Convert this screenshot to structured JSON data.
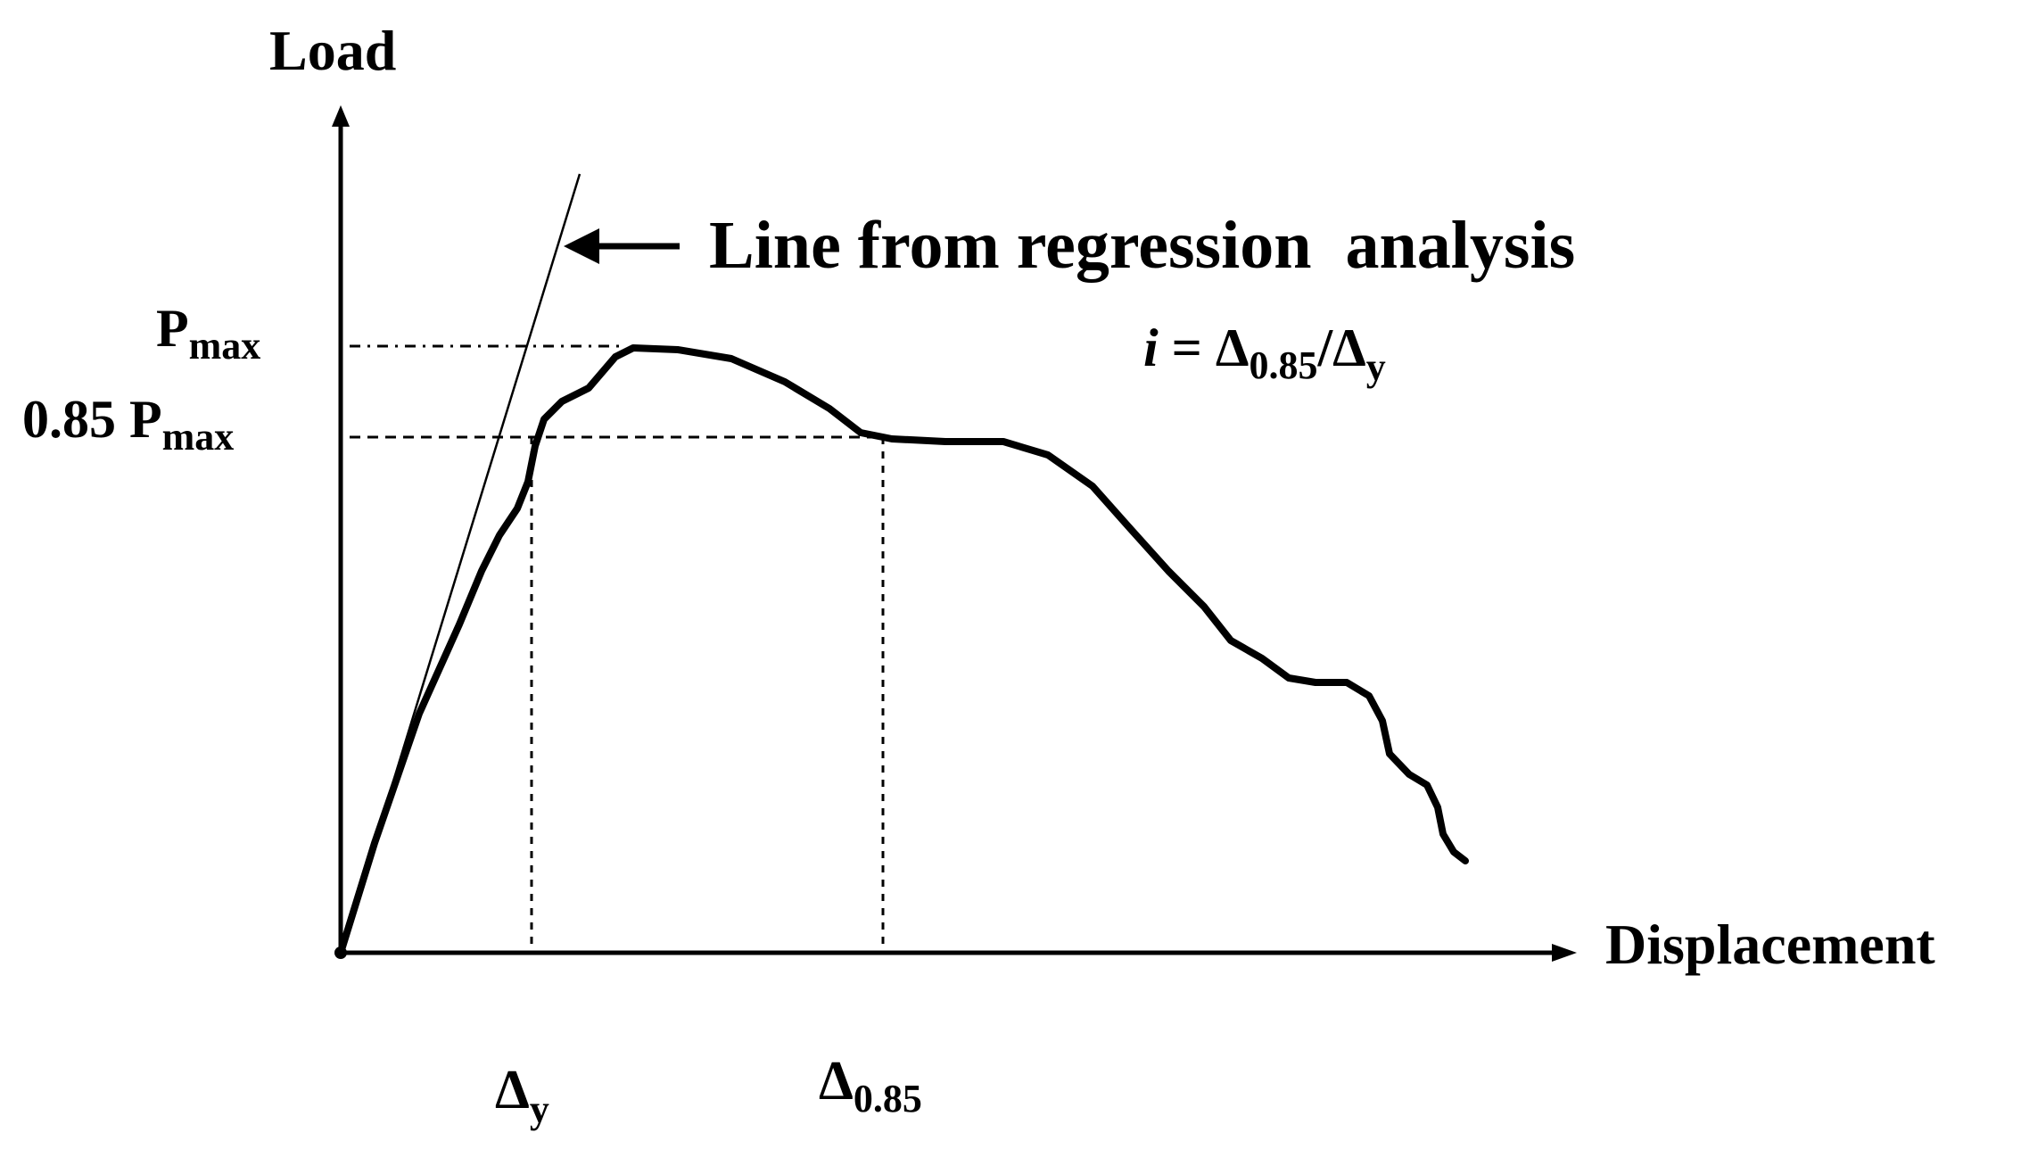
{
  "colors": {
    "ink": "#000000",
    "background": "#ffffff"
  },
  "axes": {
    "y_label": "Load",
    "x_label": "Displacement"
  },
  "load_levels": {
    "pmax_main": "P",
    "pmax_sub": "max",
    "p085_prefix": "0.85 P",
    "p085_sub": "max"
  },
  "displacement_marks": {
    "dy_main": "Δ",
    "dy_sub": "y",
    "d085_main": "Δ",
    "d085_sub": "0.85"
  },
  "annotation": {
    "regression_label": "Line from regression  analysis",
    "ductility_var": "i",
    "ductility_eq": " = Δ",
    "ductility_sub1": "0.85",
    "ductility_div": "/Δ",
    "ductility_sub2": "y"
  }
}
